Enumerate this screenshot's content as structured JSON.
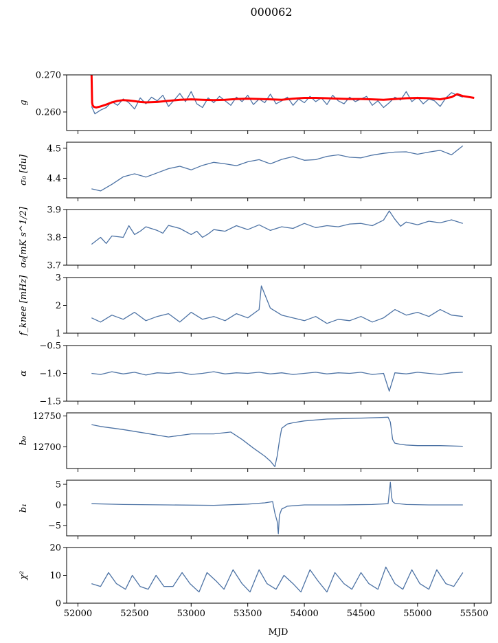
{
  "figure": {
    "title": "000062",
    "xlabel": "MJD"
  },
  "colors": {
    "series": "#4c72a4",
    "fit": "#ff0000",
    "axis": "#000000",
    "background": "#ffffff"
  },
  "chart_data": [
    {
      "type": "line",
      "ylabel": "g",
      "xlim": [
        51900,
        55650
      ],
      "ylim": [
        0.255,
        0.27
      ],
      "yticks": [
        0.26,
        0.27
      ],
      "yticklabels": [
        "0.260",
        "0.270"
      ],
      "grid": false,
      "series": [
        {
          "x": [
            52120,
            52150,
            52200,
            52250,
            52300,
            52350,
            52400,
            52450,
            52500,
            52550,
            52600,
            52650,
            52700,
            52750,
            52800,
            52850,
            52900,
            52950,
            53000,
            53050,
            53100,
            53150,
            53200,
            53250,
            53300,
            53350,
            53400,
            53450,
            53500,
            53550,
            53600,
            53650,
            53700,
            53750,
            53800,
            53850,
            53900,
            53950,
            54000,
            54050,
            54100,
            54150,
            54200,
            54250,
            54300,
            54350,
            54400,
            54450,
            54500,
            54550,
            54600,
            54650,
            54700,
            54750,
            54800,
            54850,
            54900,
            54950,
            55000,
            55050,
            55100,
            55150,
            55200,
            55250,
            55300,
            55350,
            55400
          ],
          "y": [
            0.2615,
            0.2595,
            0.2605,
            0.2612,
            0.2628,
            0.2618,
            0.2635,
            0.2625,
            0.2608,
            0.2638,
            0.2622,
            0.264,
            0.263,
            0.2645,
            0.2615,
            0.2632,
            0.265,
            0.2628,
            0.2655,
            0.2622,
            0.2612,
            0.2638,
            0.2625,
            0.2642,
            0.263,
            0.2618,
            0.264,
            0.2628,
            0.2645,
            0.262,
            0.2635,
            0.2625,
            0.2648,
            0.2622,
            0.263,
            0.264,
            0.2618,
            0.2635,
            0.2625,
            0.2642,
            0.2628,
            0.2638,
            0.262,
            0.2645,
            0.263,
            0.2622,
            0.264,
            0.2628,
            0.2635,
            0.2642,
            0.2618,
            0.263,
            0.2612,
            0.2625,
            0.264,
            0.2632,
            0.2655,
            0.2628,
            0.264,
            0.2622,
            0.2635,
            0.263,
            0.2615,
            0.2638,
            0.2652,
            0.2645,
            0.264
          ]
        },
        {
          "x": [
            52120,
            52125,
            52130,
            52140,
            52160,
            52200,
            52250,
            52300,
            52350,
            52400,
            52450,
            52500,
            52550,
            52600,
            52700,
            52800,
            52900,
            53000,
            53100,
            53200,
            53300,
            53400,
            53500,
            53600,
            53700,
            53800,
            53900,
            54000,
            54100,
            54200,
            54300,
            54400,
            54500,
            54600,
            54700,
            54800,
            54900,
            55000,
            55100,
            55200,
            55300,
            55350,
            55400,
            55500
          ],
          "y": [
            0.27,
            0.2625,
            0.2618,
            0.2614,
            0.2612,
            0.2615,
            0.262,
            0.2626,
            0.263,
            0.2632,
            0.2631,
            0.2629,
            0.2627,
            0.2626,
            0.2627,
            0.263,
            0.2633,
            0.2634,
            0.2633,
            0.2632,
            0.2633,
            0.2635,
            0.2636,
            0.2635,
            0.2634,
            0.2633,
            0.2636,
            0.2638,
            0.2638,
            0.2637,
            0.2636,
            0.2635,
            0.2635,
            0.2634,
            0.2633,
            0.2635,
            0.2637,
            0.2638,
            0.2637,
            0.2634,
            0.264,
            0.2648,
            0.2643,
            0.2638
          ]
        }
      ]
    },
    {
      "type": "line",
      "ylabel": "σ₀ [du]",
      "xlim": [
        51900,
        55650
      ],
      "ylim": [
        4.335,
        4.52
      ],
      "yticks": [
        4.4,
        4.5
      ],
      "yticklabels": [
        "4.4",
        "4.5"
      ],
      "grid": false,
      "series": [
        {
          "x": [
            52120,
            52200,
            52300,
            52400,
            52500,
            52600,
            52700,
            52800,
            52900,
            53000,
            53100,
            53200,
            53300,
            53400,
            53500,
            53600,
            53700,
            53800,
            53900,
            54000,
            54100,
            54200,
            54300,
            54400,
            54500,
            54600,
            54700,
            54800,
            54900,
            55000,
            55100,
            55200,
            55300,
            55400
          ],
          "y": [
            4.365,
            4.358,
            4.38,
            4.405,
            4.415,
            4.404,
            4.418,
            4.432,
            4.44,
            4.428,
            4.443,
            4.453,
            4.448,
            4.442,
            4.455,
            4.462,
            4.448,
            4.463,
            4.472,
            4.46,
            4.462,
            4.473,
            4.478,
            4.47,
            4.468,
            4.477,
            4.483,
            4.487,
            4.488,
            4.48,
            4.487,
            4.493,
            4.478,
            4.508
          ]
        }
      ]
    },
    {
      "type": "line",
      "ylabel": "σ₀[mK s^1/2]",
      "xlim": [
        51900,
        55650
      ],
      "ylim": [
        3.7,
        3.9
      ],
      "yticks": [
        3.7,
        3.8,
        3.9
      ],
      "yticklabels": [
        "3.7",
        "3.8",
        "3.9"
      ],
      "grid": false,
      "series": [
        {
          "x": [
            52120,
            52200,
            52250,
            52300,
            52400,
            52450,
            52500,
            52550,
            52600,
            52700,
            52750,
            52800,
            52900,
            53000,
            53050,
            53100,
            53150,
            53200,
            53300,
            53400,
            53500,
            53600,
            53700,
            53800,
            53900,
            54000,
            54100,
            54200,
            54300,
            54400,
            54500,
            54600,
            54700,
            54750,
            54800,
            54850,
            54900,
            55000,
            55100,
            55200,
            55300,
            55400
          ],
          "y": [
            3.775,
            3.8,
            3.778,
            3.805,
            3.8,
            3.842,
            3.81,
            3.822,
            3.838,
            3.825,
            3.815,
            3.843,
            3.832,
            3.81,
            3.822,
            3.8,
            3.812,
            3.828,
            3.822,
            3.842,
            3.828,
            3.845,
            3.825,
            3.838,
            3.832,
            3.85,
            3.835,
            3.842,
            3.838,
            3.848,
            3.85,
            3.842,
            3.862,
            3.895,
            3.865,
            3.84,
            3.855,
            3.845,
            3.858,
            3.852,
            3.863,
            3.85
          ]
        }
      ]
    },
    {
      "type": "line",
      "ylabel": "f_knee [mHz]",
      "xlim": [
        51900,
        55650
      ],
      "ylim": [
        1,
        3
      ],
      "yticks": [
        1,
        2,
        3
      ],
      "yticklabels": [
        "1",
        "2",
        "3"
      ],
      "grid": false,
      "series": [
        {
          "x": [
            52120,
            52200,
            52300,
            52400,
            52500,
            52600,
            52700,
            52800,
            52900,
            53000,
            53100,
            53200,
            53300,
            53400,
            53500,
            53600,
            53620,
            53700,
            53800,
            53900,
            54000,
            54100,
            54200,
            54300,
            54400,
            54500,
            54600,
            54700,
            54800,
            54900,
            55000,
            55100,
            55200,
            55300,
            55400
          ],
          "y": [
            1.55,
            1.4,
            1.65,
            1.5,
            1.75,
            1.45,
            1.6,
            1.7,
            1.4,
            1.75,
            1.5,
            1.6,
            1.45,
            1.7,
            1.55,
            1.85,
            2.7,
            1.9,
            1.65,
            1.55,
            1.45,
            1.6,
            1.35,
            1.5,
            1.45,
            1.6,
            1.4,
            1.55,
            1.85,
            1.65,
            1.75,
            1.6,
            1.85,
            1.65,
            1.6
          ]
        }
      ]
    },
    {
      "type": "line",
      "ylabel": "α",
      "xlim": [
        51900,
        55650
      ],
      "ylim": [
        -1.5,
        -0.5
      ],
      "yticks": [
        -1.5,
        -1.0,
        -0.5
      ],
      "yticklabels": [
        "−1.5",
        "−1.0",
        "−0.5"
      ],
      "grid": false,
      "series": [
        {
          "x": [
            52120,
            52200,
            52300,
            52400,
            52500,
            52600,
            52700,
            52800,
            52900,
            53000,
            53100,
            53200,
            53300,
            53400,
            53500,
            53600,
            53700,
            53800,
            53900,
            54000,
            54100,
            54200,
            54300,
            54400,
            54500,
            54600,
            54700,
            54750,
            54800,
            54900,
            55000,
            55100,
            55200,
            55300,
            55400
          ],
          "y": [
            -1.0,
            -1.02,
            -0.97,
            -1.01,
            -0.98,
            -1.03,
            -0.99,
            -1.0,
            -0.98,
            -1.02,
            -1.0,
            -0.97,
            -1.01,
            -0.99,
            -1.0,
            -0.98,
            -1.01,
            -0.99,
            -1.02,
            -1.0,
            -0.98,
            -1.01,
            -0.99,
            -1.0,
            -0.98,
            -1.02,
            -1.0,
            -1.32,
            -0.99,
            -1.01,
            -0.98,
            -1.0,
            -1.02,
            -0.99,
            -0.98
          ]
        }
      ]
    },
    {
      "type": "line",
      "ylabel": "b₀",
      "xlim": [
        51900,
        55650
      ],
      "ylim": [
        12665,
        12755
      ],
      "yticks": [
        12700,
        12750
      ],
      "yticklabels": [
        "12700",
        "12750"
      ],
      "grid": false,
      "series": [
        {
          "x": [
            52120,
            52200,
            52400,
            52600,
            52800,
            53000,
            53200,
            53350,
            53450,
            53550,
            53650,
            53700,
            53740,
            53760,
            53780,
            53800,
            53850,
            53900,
            54000,
            54200,
            54400,
            54600,
            54740,
            54760,
            54780,
            54800,
            54850,
            54900,
            55000,
            55200,
            55400
          ],
          "y": [
            12736,
            12733,
            12728,
            12722,
            12716,
            12721,
            12721,
            12724,
            12712,
            12698,
            12685,
            12677,
            12668,
            12685,
            12710,
            12730,
            12737,
            12739,
            12742,
            12745,
            12746,
            12747,
            12748,
            12740,
            12712,
            12706,
            12704,
            12703,
            12702,
            12702,
            12701
          ]
        }
      ]
    },
    {
      "type": "line",
      "ylabel": "b₁",
      "xlim": [
        51900,
        55650
      ],
      "ylim": [
        -7.5,
        6
      ],
      "yticks": [
        -5,
        0,
        5
      ],
      "yticklabels": [
        "−5",
        "0",
        "5"
      ],
      "grid": false,
      "series": [
        {
          "x": [
            52120,
            52400,
            52800,
            53200,
            53500,
            53650,
            53720,
            53740,
            53760,
            53770,
            53780,
            53800,
            53850,
            54000,
            54300,
            54600,
            54740,
            54760,
            54770,
            54780,
            54800,
            54900,
            55100,
            55400
          ],
          "y": [
            0.3,
            0.1,
            0.0,
            -0.1,
            0.2,
            0.5,
            0.8,
            -2.0,
            -4.0,
            -7.0,
            -2.5,
            -1.0,
            -0.3,
            0.0,
            0.0,
            0.1,
            0.3,
            5.5,
            2.0,
            0.8,
            0.4,
            0.1,
            0.0,
            0.0
          ]
        }
      ]
    },
    {
      "type": "line",
      "ylabel": "χ²",
      "xlim": [
        51900,
        55650
      ],
      "ylim": [
        0,
        20
      ],
      "yticks": [
        0,
        10,
        20
      ],
      "yticklabels": [
        "0",
        "10",
        "20"
      ],
      "xticks": [
        52000,
        52500,
        53000,
        53500,
        54000,
        54500,
        55000,
        55500
      ],
      "xticklabels": [
        "52000",
        "52500",
        "53000",
        "53500",
        "54000",
        "54500",
        "55000",
        "55500"
      ],
      "grid": false,
      "series": [
        {
          "x": [
            52120,
            52200,
            52270,
            52340,
            52420,
            52480,
            52550,
            52620,
            52690,
            52760,
            52840,
            52920,
            52990,
            53070,
            53140,
            53220,
            53290,
            53370,
            53450,
            53520,
            53600,
            53670,
            53750,
            53820,
            53900,
            53970,
            54050,
            54120,
            54200,
            54270,
            54350,
            54420,
            54500,
            54570,
            54650,
            54720,
            54800,
            54870,
            54950,
            55020,
            55100,
            55170,
            55250,
            55320,
            55400
          ],
          "y": [
            7,
            6,
            11,
            7,
            5,
            10,
            6,
            5,
            10,
            6,
            6,
            11,
            7,
            4,
            11,
            8,
            5,
            12,
            7,
            4,
            12,
            7,
            5,
            10,
            7,
            4,
            12,
            8,
            4,
            11,
            7,
            5,
            11,
            7,
            5,
            13,
            7,
            5,
            12,
            7,
            5,
            12,
            7,
            6,
            11
          ]
        }
      ]
    }
  ]
}
